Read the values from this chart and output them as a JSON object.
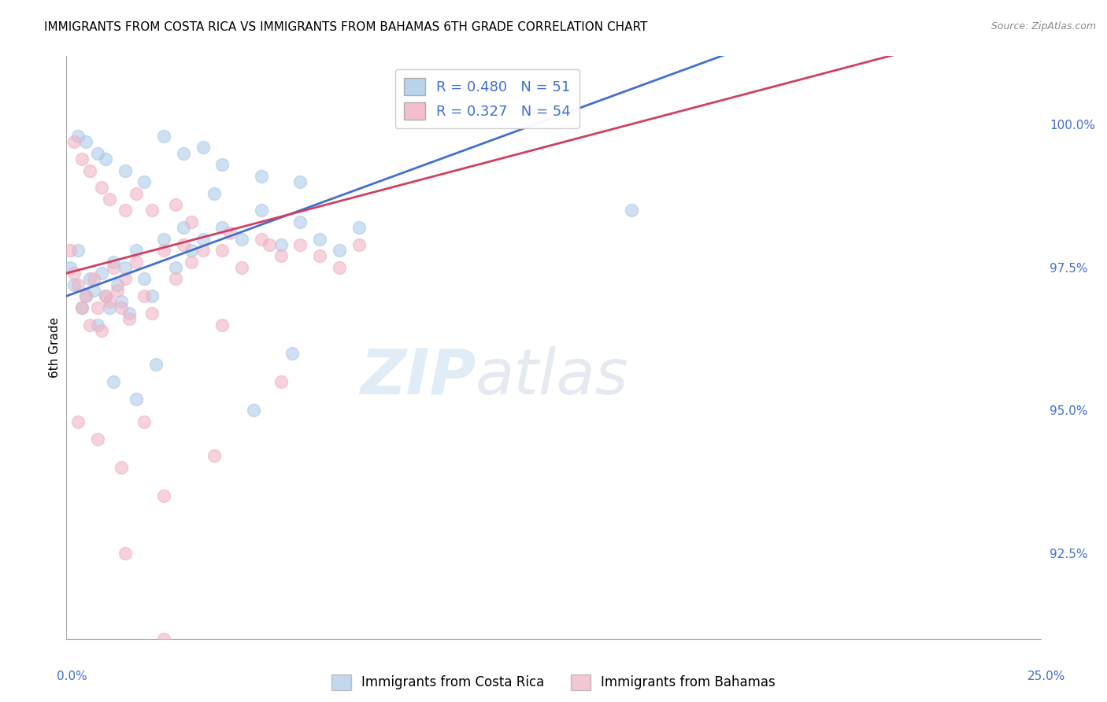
{
  "title": "IMMIGRANTS FROM COSTA RICA VS IMMIGRANTS FROM BAHAMAS 6TH GRADE CORRELATION CHART",
  "source": "Source: ZipAtlas.com",
  "ylabel": "6th Grade",
  "yticks": [
    92.5,
    95.0,
    97.5,
    100.0
  ],
  "ytick_labels": [
    "92.5%",
    "95.0%",
    "97.5%",
    "100.0%"
  ],
  "xlim": [
    0.0,
    25.0
  ],
  "ylim": [
    91.0,
    101.2
  ],
  "legend_blue_r": "R = 0.480",
  "legend_blue_n": "N = 51",
  "legend_pink_r": "R = 0.327",
  "legend_pink_n": "N = 54",
  "label_blue": "Immigrants from Costa Rica",
  "label_pink": "Immigrants from Bahamas",
  "watermark_zip": "ZIP",
  "watermark_atlas": "atlas",
  "costa_rica_x": [
    0.1,
    0.2,
    0.3,
    0.4,
    0.5,
    0.6,
    0.7,
    0.8,
    0.9,
    1.0,
    1.1,
    1.2,
    1.3,
    1.4,
    1.5,
    1.6,
    1.8,
    2.0,
    2.2,
    2.5,
    2.8,
    3.0,
    3.2,
    3.5,
    4.0,
    4.5,
    5.0,
    5.5,
    6.0,
    6.5,
    7.0,
    7.5,
    0.3,
    0.5,
    0.8,
    1.0,
    1.5,
    2.0,
    2.5,
    3.0,
    3.5,
    4.0,
    5.0,
    6.0,
    1.2,
    1.8,
    2.3,
    3.8,
    4.8,
    14.5,
    5.8
  ],
  "costa_rica_y": [
    97.5,
    97.2,
    97.8,
    96.8,
    97.0,
    97.3,
    97.1,
    96.5,
    97.4,
    97.0,
    96.8,
    97.6,
    97.2,
    96.9,
    97.5,
    96.7,
    97.8,
    97.3,
    97.0,
    98.0,
    97.5,
    98.2,
    97.8,
    98.0,
    98.2,
    98.0,
    98.5,
    97.9,
    98.3,
    98.0,
    97.8,
    98.2,
    99.8,
    99.7,
    99.5,
    99.4,
    99.2,
    99.0,
    99.8,
    99.5,
    99.6,
    99.3,
    99.1,
    99.0,
    95.5,
    95.2,
    95.8,
    98.8,
    95.0,
    98.5,
    96.0
  ],
  "bahamas_x": [
    0.1,
    0.2,
    0.3,
    0.4,
    0.5,
    0.6,
    0.7,
    0.8,
    0.9,
    1.0,
    1.1,
    1.2,
    1.3,
    1.4,
    1.5,
    1.6,
    1.8,
    2.0,
    2.2,
    2.5,
    2.8,
    3.0,
    3.2,
    3.5,
    4.0,
    4.5,
    5.0,
    5.5,
    6.0,
    6.5,
    7.0,
    7.5,
    0.2,
    0.4,
    0.6,
    0.9,
    1.1,
    1.5,
    1.8,
    2.2,
    2.8,
    3.2,
    4.2,
    5.2,
    0.3,
    0.8,
    1.4,
    2.5,
    3.8,
    1.5,
    2.0,
    4.0,
    2.5,
    5.5
  ],
  "bahamas_y": [
    97.8,
    97.4,
    97.2,
    96.8,
    97.0,
    96.5,
    97.3,
    96.8,
    96.4,
    97.0,
    96.9,
    97.5,
    97.1,
    96.8,
    97.3,
    96.6,
    97.6,
    97.0,
    96.7,
    97.8,
    97.3,
    97.9,
    97.6,
    97.8,
    97.8,
    97.5,
    98.0,
    97.7,
    97.9,
    97.7,
    97.5,
    97.9,
    99.7,
    99.4,
    99.2,
    98.9,
    98.7,
    98.5,
    98.8,
    98.5,
    98.6,
    98.3,
    98.1,
    97.9,
    94.8,
    94.5,
    94.0,
    93.5,
    94.2,
    92.5,
    94.8,
    96.5,
    91.0,
    95.5
  ],
  "blue_color": "#a8c8e8",
  "pink_color": "#f0b0c0",
  "blue_line_color": "#4070d0",
  "pink_line_color": "#d04060",
  "grid_color": "#c8c8c8",
  "background_color": "#ffffff"
}
